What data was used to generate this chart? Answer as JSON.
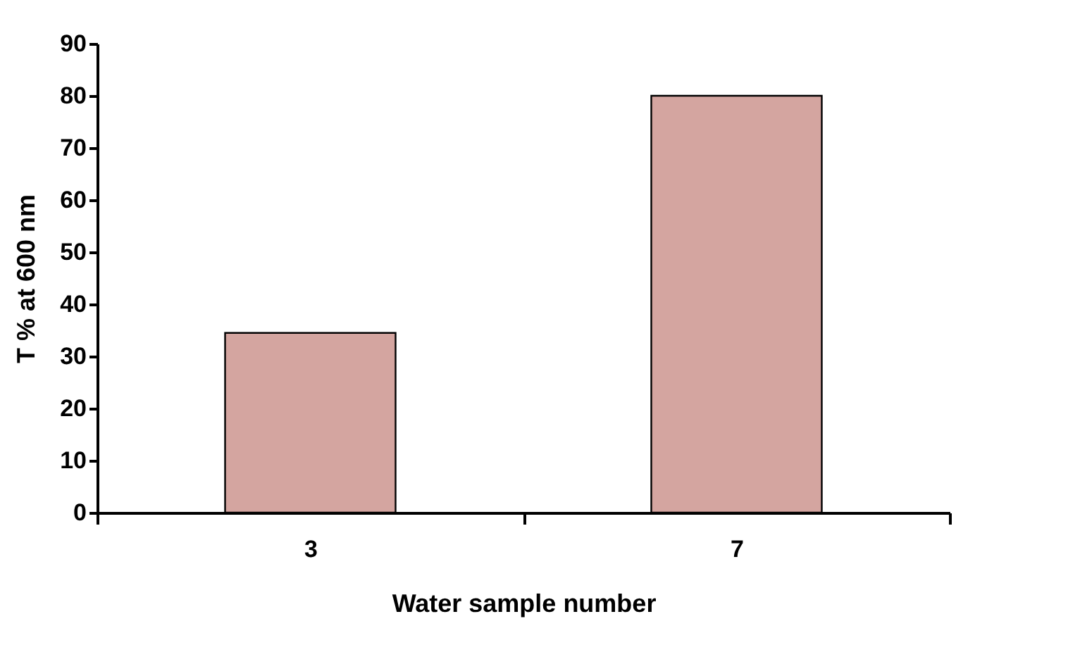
{
  "chart_data": {
    "type": "bar",
    "xlabel": "Water sample number",
    "ylabel": "T % at 600 nm",
    "categories": [
      "3",
      "7"
    ],
    "values": [
      34.5,
      80
    ],
    "color": "#d4a5a0",
    "ylim": [
      0,
      90
    ],
    "yticks": [
      0,
      10,
      20,
      30,
      40,
      50,
      60,
      70,
      80,
      90
    ],
    "grid": false
  }
}
